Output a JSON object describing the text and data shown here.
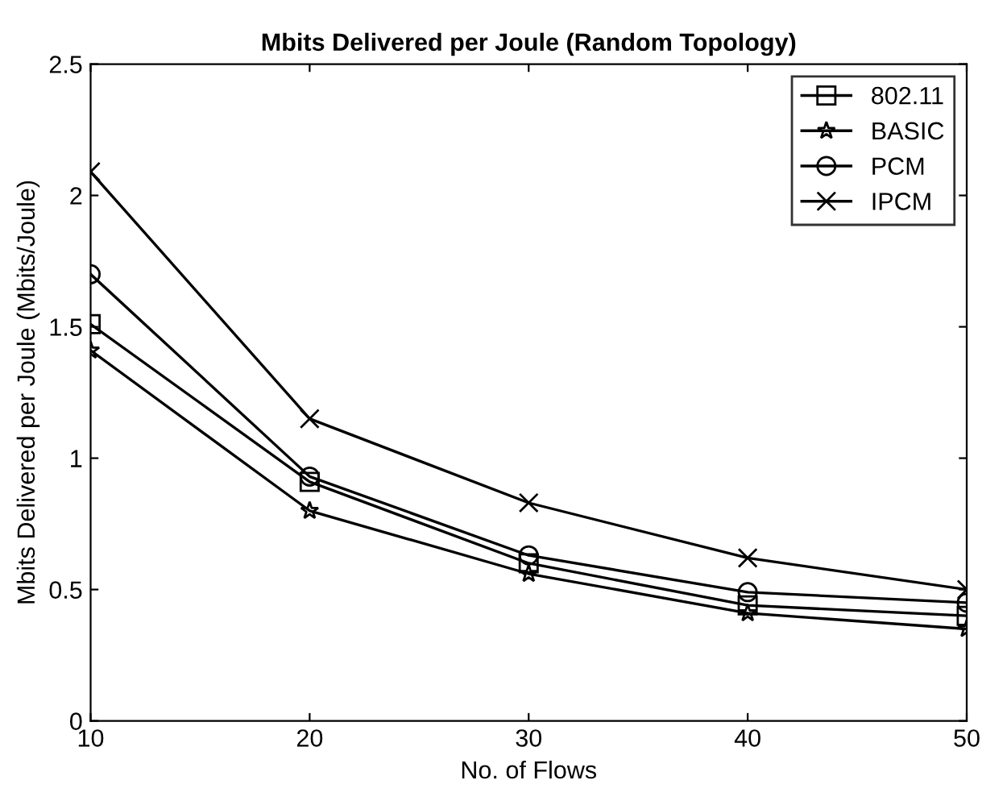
{
  "chart_data": {
    "type": "line",
    "title": "Mbits Delivered per Joule (Random Topology)",
    "xlabel": "No. of Flows",
    "ylabel": "Mbits Delivered per Joule (Mbits/Joule)",
    "x": [
      10,
      20,
      30,
      40,
      50
    ],
    "series": [
      {
        "name": "802.11",
        "color": "#000000",
        "marker": "square",
        "values": [
          1.51,
          0.91,
          0.6,
          0.44,
          0.4
        ]
      },
      {
        "name": "BASIC",
        "color": "#000000",
        "marker": "star",
        "values": [
          1.41,
          0.8,
          0.56,
          0.41,
          0.35
        ]
      },
      {
        "name": "PCM",
        "color": "#000000",
        "marker": "circle",
        "values": [
          1.7,
          0.93,
          0.63,
          0.49,
          0.45
        ]
      },
      {
        "name": "IPCM",
        "color": "#000000",
        "marker": "cross",
        "values": [
          2.09,
          1.15,
          0.83,
          0.62,
          0.5
        ]
      }
    ],
    "xlim": [
      10,
      50
    ],
    "xticks": [
      10,
      20,
      30,
      40,
      50
    ],
    "ylim": [
      0,
      2.5
    ],
    "yticks": [
      0,
      0.5,
      1,
      1.5,
      2,
      2.5
    ],
    "legend": "top right",
    "line_style": "solid"
  }
}
